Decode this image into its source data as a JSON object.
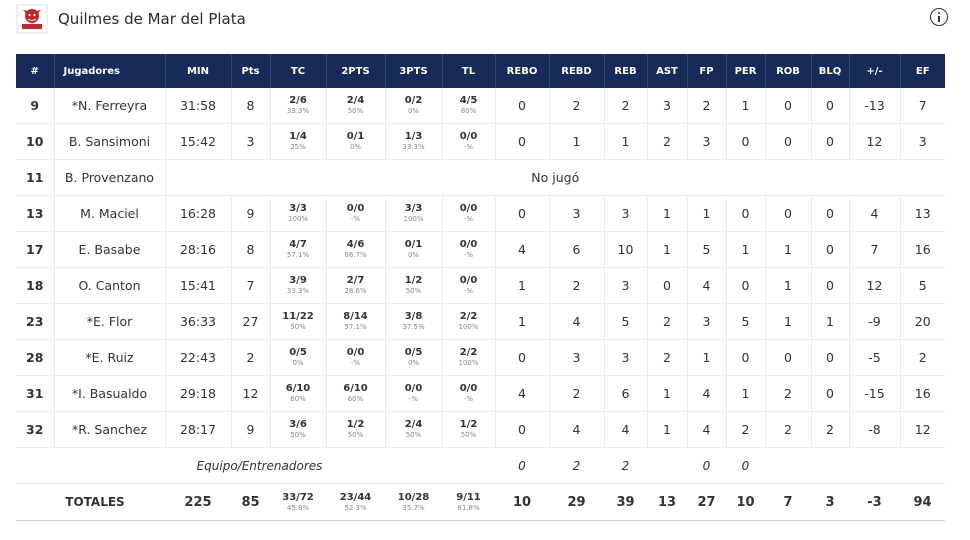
{
  "team": {
    "name": "Quilmes de Mar del Plata",
    "logo_icon": "team-logo-icon",
    "brand_color": "#c1272d"
  },
  "header_color": "#182a5a",
  "columns": [
    "#",
    "Jugadores",
    "MIN",
    "Pts",
    "TC",
    "2PTS",
    "3PTS",
    "TL",
    "REBO",
    "REBD",
    "REB",
    "AST",
    "FP",
    "PER",
    "ROB",
    "BLQ",
    "+/-",
    "EF"
  ],
  "players": [
    {
      "num": "9",
      "name": "*N. Ferreyra",
      "min": "31:58",
      "pts": "8",
      "tc": {
        "m": "2/6",
        "p": "33.3%"
      },
      "p2": {
        "m": "2/4",
        "p": "50%"
      },
      "p3": {
        "m": "0/2",
        "p": "0%"
      },
      "tl": {
        "m": "4/5",
        "p": "80%"
      },
      "rebo": "0",
      "rebd": "2",
      "reb": "2",
      "ast": "3",
      "fp": "2",
      "per": "1",
      "rob": "0",
      "blq": "0",
      "pm": "-13",
      "ef": "7"
    },
    {
      "num": "10",
      "name": "B. Sansimoni",
      "min": "15:42",
      "pts": "3",
      "tc": {
        "m": "1/4",
        "p": "25%"
      },
      "p2": {
        "m": "0/1",
        "p": "0%"
      },
      "p3": {
        "m": "1/3",
        "p": "33.3%"
      },
      "tl": {
        "m": "0/0",
        "p": "-%"
      },
      "rebo": "0",
      "rebd": "1",
      "reb": "1",
      "ast": "2",
      "fp": "3",
      "per": "0",
      "rob": "0",
      "blq": "0",
      "pm": "12",
      "ef": "3"
    },
    {
      "num": "13",
      "name": "M. Maciel",
      "min": "16:28",
      "pts": "9",
      "tc": {
        "m": "3/3",
        "p": "100%"
      },
      "p2": {
        "m": "0/0",
        "p": "-%"
      },
      "p3": {
        "m": "3/3",
        "p": "100%"
      },
      "tl": {
        "m": "0/0",
        "p": "-%"
      },
      "rebo": "0",
      "rebd": "3",
      "reb": "3",
      "ast": "1",
      "fp": "1",
      "per": "0",
      "rob": "0",
      "blq": "0",
      "pm": "4",
      "ef": "13"
    },
    {
      "num": "17",
      "name": "E. Basabe",
      "min": "28:16",
      "pts": "8",
      "tc": {
        "m": "4/7",
        "p": "57.1%"
      },
      "p2": {
        "m": "4/6",
        "p": "66.7%"
      },
      "p3": {
        "m": "0/1",
        "p": "0%"
      },
      "tl": {
        "m": "0/0",
        "p": "-%"
      },
      "rebo": "4",
      "rebd": "6",
      "reb": "10",
      "ast": "1",
      "fp": "5",
      "per": "1",
      "rob": "1",
      "blq": "0",
      "pm": "7",
      "ef": "16"
    },
    {
      "num": "18",
      "name": "O. Canton",
      "min": "15:41",
      "pts": "7",
      "tc": {
        "m": "3/9",
        "p": "33.3%"
      },
      "p2": {
        "m": "2/7",
        "p": "28.6%"
      },
      "p3": {
        "m": "1/2",
        "p": "50%"
      },
      "tl": {
        "m": "0/0",
        "p": "-%"
      },
      "rebo": "1",
      "rebd": "2",
      "reb": "3",
      "ast": "0",
      "fp": "4",
      "per": "0",
      "rob": "1",
      "blq": "0",
      "pm": "12",
      "ef": "5"
    },
    {
      "num": "23",
      "name": "*E. Flor",
      "min": "36:33",
      "pts": "27",
      "tc": {
        "m": "11/22",
        "p": "50%"
      },
      "p2": {
        "m": "8/14",
        "p": "57.1%"
      },
      "p3": {
        "m": "3/8",
        "p": "37.5%"
      },
      "tl": {
        "m": "2/2",
        "p": "100%"
      },
      "rebo": "1",
      "rebd": "4",
      "reb": "5",
      "ast": "2",
      "fp": "3",
      "per": "5",
      "rob": "1",
      "blq": "1",
      "pm": "-9",
      "ef": "20"
    },
    {
      "num": "28",
      "name": "*E. Ruiz",
      "min": "22:43",
      "pts": "2",
      "tc": {
        "m": "0/5",
        "p": "0%"
      },
      "p2": {
        "m": "0/0",
        "p": "-%"
      },
      "p3": {
        "m": "0/5",
        "p": "0%"
      },
      "tl": {
        "m": "2/2",
        "p": "100%"
      },
      "rebo": "0",
      "rebd": "3",
      "reb": "3",
      "ast": "2",
      "fp": "1",
      "per": "0",
      "rob": "0",
      "blq": "0",
      "pm": "-5",
      "ef": "2"
    },
    {
      "num": "31",
      "name": "*I. Basualdo",
      "min": "29:18",
      "pts": "12",
      "tc": {
        "m": "6/10",
        "p": "60%"
      },
      "p2": {
        "m": "6/10",
        "p": "60%"
      },
      "p3": {
        "m": "0/0",
        "p": "-%"
      },
      "tl": {
        "m": "0/0",
        "p": "-%"
      },
      "rebo": "4",
      "rebd": "2",
      "reb": "6",
      "ast": "1",
      "fp": "4",
      "per": "1",
      "rob": "2",
      "blq": "0",
      "pm": "-15",
      "ef": "16"
    },
    {
      "num": "32",
      "name": "*R. Sanchez",
      "min": "28:17",
      "pts": "9",
      "tc": {
        "m": "3/6",
        "p": "50%"
      },
      "p2": {
        "m": "1/2",
        "p": "50%"
      },
      "p3": {
        "m": "2/4",
        "p": "50%"
      },
      "tl": {
        "m": "1/2",
        "p": "50%"
      },
      "rebo": "0",
      "rebd": "4",
      "reb": "4",
      "ast": "1",
      "fp": "4",
      "per": "2",
      "rob": "2",
      "blq": "2",
      "pm": "-8",
      "ef": "12"
    }
  ],
  "dnp_player": {
    "num": "11",
    "name": "B. Provenzano",
    "note": "No jugó"
  },
  "team_row": {
    "label": "Equipo/Entrenadores",
    "rebo": "0",
    "rebd": "2",
    "reb": "2",
    "fp": "0",
    "per": "0"
  },
  "totals": {
    "label": "TOTALES",
    "min": "225",
    "pts": "85",
    "tc": {
      "m": "33/72",
      "p": "45.8%"
    },
    "p2": {
      "m": "23/44",
      "p": "52.3%"
    },
    "p3": {
      "m": "10/28",
      "p": "35.7%"
    },
    "tl": {
      "m": "9/11",
      "p": "81.8%"
    },
    "rebo": "10",
    "rebd": "29",
    "reb": "39",
    "ast": "13",
    "fp": "27",
    "per": "10",
    "rob": "7",
    "blq": "3",
    "pm": "-3",
    "ef": "94"
  }
}
